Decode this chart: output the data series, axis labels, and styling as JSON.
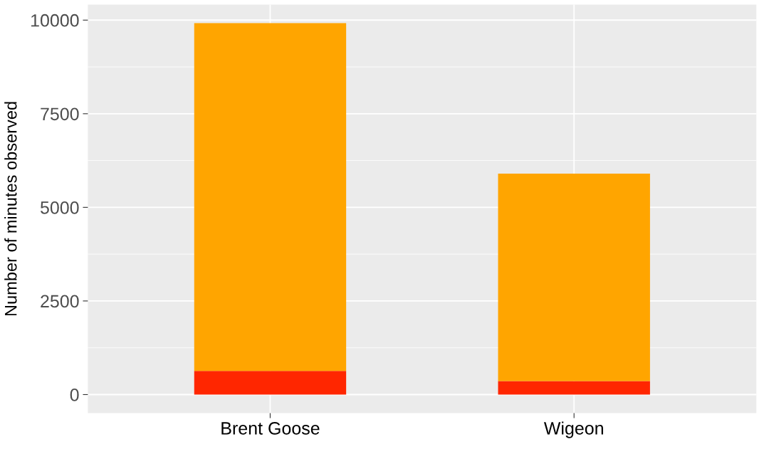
{
  "chart_data": {
    "type": "bar",
    "stacked": true,
    "ylabel": "Number of minutes observed",
    "categories": [
      "Brent Goose",
      "Wigeon"
    ],
    "series": [
      {
        "color": "#ff2600",
        "values": [
          630,
          360
        ]
      },
      {
        "color": "#ffa500",
        "values": [
          9290,
          5540
        ]
      }
    ],
    "ylim": [
      -496,
      10416
    ],
    "yticks": [
      0,
      2500,
      5000,
      7500,
      10000
    ],
    "grid": true
  }
}
